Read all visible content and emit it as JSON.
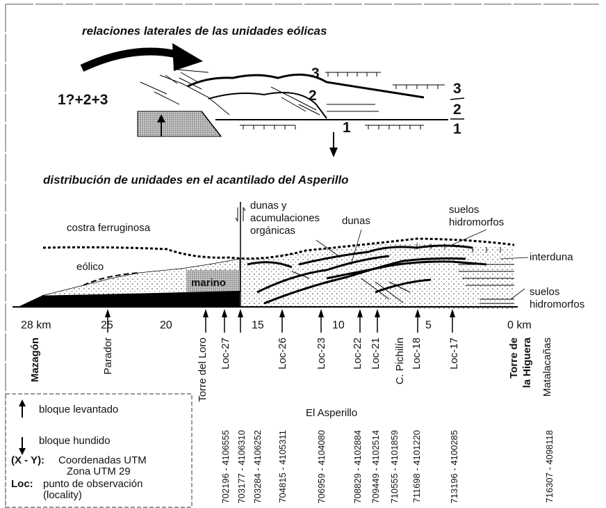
{
  "top_section": {
    "title": "relaciones laterales de las unidades eólicas",
    "unit_labels": [
      "3",
      "2",
      "1"
    ],
    "combined_label": "1?+2+3",
    "column_labels": [
      "3",
      "2",
      "1"
    ]
  },
  "profile": {
    "title": "distribución de unidades en el acantilado del Asperillo",
    "labels": {
      "costra": "costra ferruginosa",
      "eolico": "eólico",
      "marino": "marino",
      "dunas_organicas": [
        "dunas y",
        "acumulaciones",
        "orgánicas"
      ],
      "dunas": "dunas",
      "suelos_top": [
        "suelos",
        "hidromorfos"
      ],
      "interduna": "interduna",
      "suelos_bottom": [
        "suelos",
        "hidromorfos"
      ]
    }
  },
  "distance_ticks": [
    "28 km",
    "25",
    "20",
    "15",
    "10",
    "5",
    "0 km"
  ],
  "localities": [
    [
      "Mazagón"
    ],
    [
      "Parador"
    ],
    [
      "Torre del Loro"
    ],
    [
      "Loc-27"
    ],
    [
      "Loc-26"
    ],
    [
      "Loc-23"
    ],
    [
      "Loc-22"
    ],
    [
      "Loc-21"
    ],
    [
      "C. Pichilín"
    ],
    [
      "Loc-18"
    ],
    [
      "Loc-17"
    ],
    [
      "Torre de",
      "la Higuera"
    ],
    [
      "Matalacañas"
    ]
  ],
  "area_label": "El Asperillo",
  "coordinates": [
    "702196 - 4106555",
    "703177 - 4106310",
    "703284 - 4106252",
    "704815 - 4105311",
    "706959 - 4104080",
    "708829 - 4102884",
    "709449 - 4102514",
    "710555 - 4101859",
    "711698 - 4101220",
    "713196 - 4100285",
    "716307 - 4098118"
  ],
  "legend": {
    "up": "bloque levantado",
    "down": "bloque hundido",
    "xy_key": "(X - Y):",
    "xy_text": [
      "Coordenadas UTM",
      "Zona UTM 29"
    ],
    "loc_key": "Loc:",
    "loc_text": [
      "punto de observación",
      "(locality)"
    ]
  }
}
